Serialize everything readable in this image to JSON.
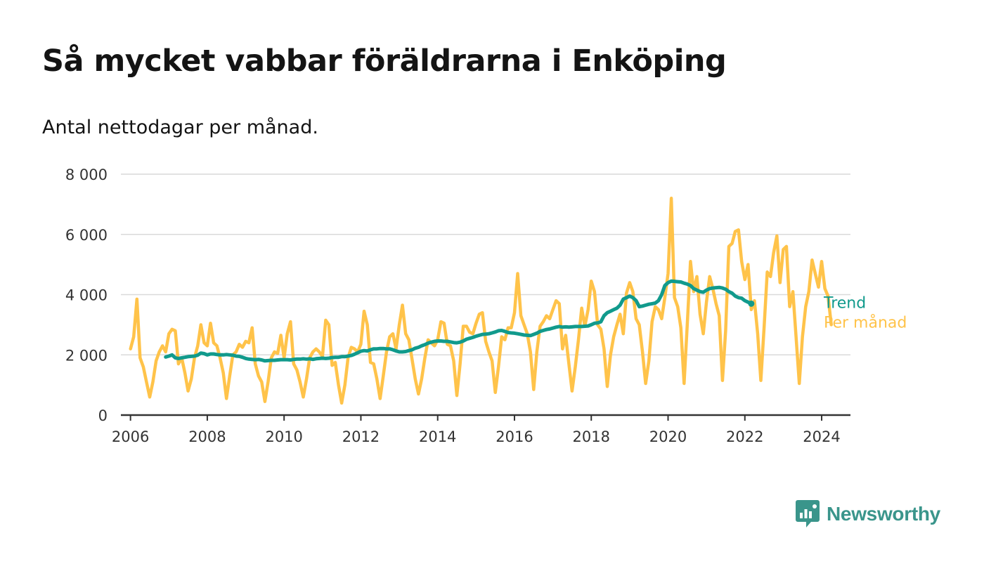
{
  "title": "Så mycket vabbar föräldrarna i Enköping",
  "subtitle": "Antal nettodagar per månad.",
  "brand": {
    "name": "Newsworthy",
    "icon": "newsworthy-logo-icon",
    "color": "#3a958b"
  },
  "colors": {
    "monthly": "#ffc34a",
    "trend": "#119a8c",
    "grid": "#d9d9d9",
    "axis": "#333333"
  },
  "chart_data": {
    "type": "line",
    "title": "Så mycket vabbar föräldrarna i Enköping",
    "subtitle": "Antal nettodagar per månad.",
    "xlabel": "",
    "ylabel": "",
    "xlim": [
      2005.75,
      2024.75
    ],
    "ylim": [
      0,
      8000
    ],
    "grid": true,
    "yticks": [
      0,
      2000,
      4000,
      6000,
      8000
    ],
    "ytick_labels": [
      "0",
      "2 000",
      "4 000",
      "6 000",
      "8 000"
    ],
    "xticks": [
      2006,
      2008,
      2010,
      2012,
      2014,
      2016,
      2018,
      2020,
      2022,
      2024
    ],
    "xtick_labels": [
      "2006",
      "2008",
      "2010",
      "2012",
      "2014",
      "2016",
      "2018",
      "2020",
      "2022",
      "2024"
    ],
    "series": [
      {
        "name": "Per månad",
        "key": "monthly",
        "x_start": 2006.0,
        "x_step": 0.0833333,
        "values": [
          2200,
          2600,
          3850,
          1900,
          1600,
          1100,
          600,
          1100,
          1800,
          2100,
          2300,
          2100,
          2700,
          2850,
          2800,
          1700,
          1900,
          1400,
          800,
          1200,
          1900,
          2300,
          3000,
          2400,
          2300,
          3050,
          2400,
          2300,
          1900,
          1400,
          550,
          1300,
          2000,
          2100,
          2350,
          2250,
          2450,
          2400,
          2900,
          1700,
          1300,
          1100,
          450,
          1100,
          1900,
          2100,
          2050,
          2650,
          1900,
          2700,
          3100,
          1700,
          1500,
          1100,
          600,
          1200,
          1900,
          2100,
          2200,
          2100,
          1950,
          3150,
          3000,
          1650,
          1750,
          1000,
          400,
          1000,
          1900,
          2250,
          2200,
          2100,
          2350,
          3450,
          3000,
          1750,
          1700,
          1200,
          550,
          1300,
          2100,
          2600,
          2700,
          2200,
          3000,
          3650,
          2700,
          2500,
          1850,
          1200,
          700,
          1200,
          1900,
          2500,
          2400,
          2300,
          2500,
          3100,
          3050,
          2350,
          2300,
          1800,
          650,
          1700,
          2950,
          2950,
          2750,
          2700,
          3050,
          3350,
          3400,
          2450,
          2100,
          1800,
          750,
          1600,
          2600,
          2500,
          2900,
          2900,
          3400,
          4700,
          3300,
          3000,
          2700,
          2100,
          850,
          2100,
          2950,
          3100,
          3300,
          3200,
          3500,
          3800,
          3700,
          2200,
          2650,
          1700,
          800,
          1600,
          2500,
          3550,
          2950,
          3500,
          4450,
          4100,
          3000,
          2850,
          2200,
          950,
          2000,
          2600,
          3000,
          3350,
          2700,
          4050,
          4400,
          4100,
          3200,
          3000,
          2100,
          1050,
          1800,
          3100,
          3600,
          3500,
          3200,
          3900,
          4700,
          7200,
          3900,
          3600,
          2900,
          1050,
          3000,
          5100,
          4100,
          4600,
          3350,
          2700,
          3750,
          4600,
          4200,
          3700,
          3300,
          1150,
          2800,
          5600,
          5700,
          6100,
          6150,
          5100,
          4500,
          5000,
          3500,
          3800,
          2700,
          1150,
          2900,
          4750,
          4600,
          5400,
          5950,
          4400,
          5500,
          5600,
          3600,
          4100,
          2600,
          1050,
          2600,
          3600,
          4100,
          5150,
          4700,
          4250,
          5100,
          4200,
          3950,
          3000
        ]
      },
      {
        "name": "Trend",
        "key": "trend",
        "x_start": 2006.9167,
        "x_step": 0.0833333,
        "values": [
          1930,
          1960,
          2000,
          1900,
          1880,
          1900,
          1920,
          1940,
          1950,
          1960,
          1990,
          2060,
          2040,
          2000,
          2030,
          2030,
          2010,
          2000,
          2000,
          2010,
          2000,
          1990,
          1960,
          1950,
          1920,
          1880,
          1860,
          1850,
          1840,
          1850,
          1830,
          1800,
          1810,
          1820,
          1820,
          1830,
          1840,
          1840,
          1840,
          1830,
          1850,
          1860,
          1860,
          1870,
          1860,
          1870,
          1850,
          1870,
          1880,
          1890,
          1880,
          1890,
          1910,
          1920,
          1920,
          1940,
          1940,
          1960,
          1980,
          2020,
          2070,
          2120,
          2140,
          2130,
          2170,
          2200,
          2200,
          2210,
          2210,
          2200,
          2200,
          2170,
          2130,
          2100,
          2100,
          2110,
          2140,
          2170,
          2220,
          2250,
          2300,
          2340,
          2390,
          2420,
          2450,
          2460,
          2460,
          2450,
          2450,
          2430,
          2410,
          2400,
          2420,
          2460,
          2520,
          2550,
          2580,
          2620,
          2650,
          2680,
          2690,
          2700,
          2730,
          2760,
          2800,
          2810,
          2780,
          2740,
          2730,
          2720,
          2700,
          2680,
          2660,
          2650,
          2640,
          2680,
          2720,
          2780,
          2810,
          2840,
          2860,
          2890,
          2920,
          2940,
          2920,
          2930,
          2920,
          2930,
          2940,
          2940,
          2940,
          2950,
          2960,
          3000,
          3050,
          3060,
          3100,
          3300,
          3400,
          3450,
          3500,
          3550,
          3650,
          3850,
          3900,
          3950,
          3900,
          3800,
          3600,
          3620,
          3650,
          3680,
          3700,
          3720,
          3800,
          4000,
          4300,
          4400,
          4450,
          4440,
          4430,
          4420,
          4380,
          4350,
          4300,
          4200,
          4150,
          4100,
          4080,
          4150,
          4200,
          4220,
          4230,
          4240,
          4220,
          4180,
          4100,
          4050,
          3950,
          3900,
          3880,
          3800,
          3750,
          3700
        ]
      }
    ],
    "legend": "inline-right"
  }
}
